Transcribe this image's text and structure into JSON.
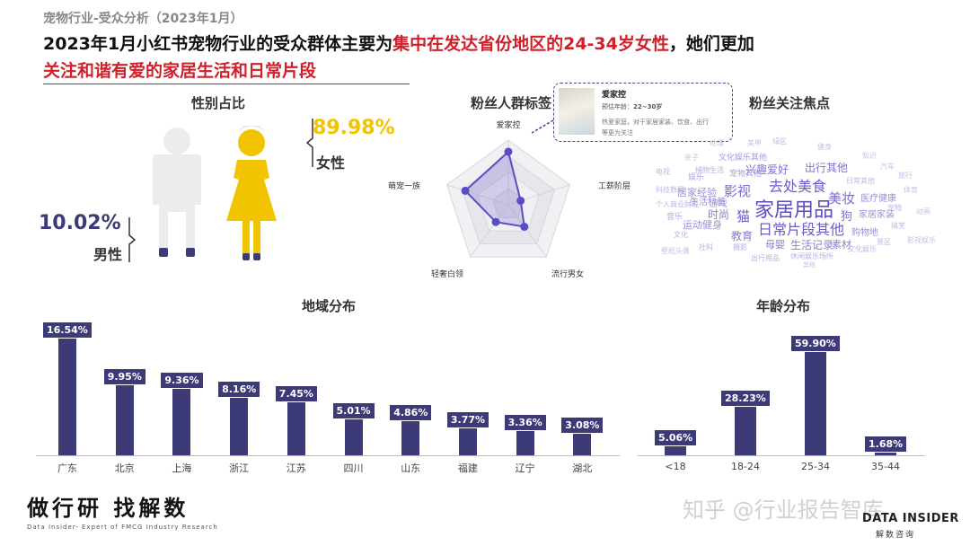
{
  "kicker": "宠物行业-受众分析（2023年1月）",
  "headline": {
    "part1": "2023年1月小红书宠物行业的受众群体主要为",
    "part2": "集中在发达省份地区的24-34岁女性",
    "part3": "，她们更加",
    "part4": "关注和谐有爱的家居生活和日常片段"
  },
  "gender": {
    "title": "性别占比",
    "female_pct": "89.98%",
    "female_label": "女性",
    "male_pct": "10.02%",
    "male_label": "男性"
  },
  "radar": {
    "title": "粉丝人群标签",
    "tooltip": {
      "title": "爱家控",
      "age_label": "预估年龄：",
      "age": "22~30岁",
      "desc_1": "热爱家庭，对于家居家装、饮食、出行",
      "desc_2": "等更为关注"
    }
  },
  "focus": {
    "title": "粉丝关注焦点",
    "words": [
      "家居用品",
      "去处美食",
      "日常片段其他",
      "影视",
      "美妆",
      "兴趣爱好",
      "出行其他",
      "猫",
      "狗",
      "时尚",
      "教育",
      "母婴",
      "生活记录",
      "素材",
      "居家经验",
      "运动健身",
      "生活科普",
      "家居家装",
      "购物地",
      "医疗健康",
      "文化娱乐其他",
      "宠物其他",
      "娱乐",
      "游戏",
      "个人商业财经",
      "捕物生活",
      "绿区",
      "日常其他",
      "科技数码",
      "电视",
      "文化",
      "音乐",
      "社科",
      "摄影",
      "出行用品",
      "休闲娱乐场所",
      "文化娱乐",
      "景区",
      "搞笑",
      "宠物",
      "体育",
      "汽车",
      "知识",
      "健身",
      "亲子",
      "动漫",
      "其他",
      "影视娱乐",
      "旅行",
      "壁纸头像",
      "美甲",
      "动画"
    ]
  },
  "region": {
    "title": "地域分布"
  },
  "age": {
    "title": "年龄分布"
  },
  "colors": {
    "bar": "#3d3a78",
    "female": "#f2c400",
    "male_body": "#ececec",
    "accent_red": "#d0202a",
    "radar": "#5a4cc4"
  },
  "chart_data": [
    {
      "type": "pie",
      "title": "性别占比",
      "categories": [
        "女性",
        "男性"
      ],
      "values": [
        89.98,
        10.02
      ]
    },
    {
      "type": "radar",
      "title": "粉丝人群标签",
      "categories": [
        "爱家控",
        "工薪阶层",
        "流行男女",
        "轻奢白领",
        "萌宠一族"
      ],
      "values": [
        0.82,
        0.2,
        0.42,
        0.33,
        0.7
      ]
    },
    {
      "type": "bar",
      "title": "地域分布",
      "categories": [
        "广东",
        "北京",
        "上海",
        "浙江",
        "江苏",
        "四川",
        "山东",
        "福建",
        "辽宁",
        "湖北"
      ],
      "values": [
        16.54,
        9.95,
        9.36,
        8.16,
        7.45,
        5.01,
        4.86,
        3.77,
        3.36,
        3.08
      ],
      "labels": [
        "16.54%",
        "9.95%",
        "9.36%",
        "8.16%",
        "7.45%",
        "5.01%",
        "4.86%",
        "3.77%",
        "3.36%",
        "3.08%"
      ],
      "ylim": [
        0,
        18
      ]
    },
    {
      "type": "bar",
      "title": "年龄分布",
      "categories": [
        "<18",
        "18-24",
        "25-34",
        "35-44"
      ],
      "values": [
        5.06,
        28.23,
        59.9,
        1.68
      ],
      "labels": [
        "5.06%",
        "28.23%",
        "59.90%",
        "1.68%"
      ],
      "ylim": [
        0,
        65
      ]
    }
  ],
  "footer": {
    "slogan": "做行研 找解数",
    "sub": "Data Insider- Expert of FMCG Industry Research",
    "watermark": "知乎 @行业报告智库",
    "logo": "DATA INSIDER",
    "logo_sub": "解数咨询"
  }
}
